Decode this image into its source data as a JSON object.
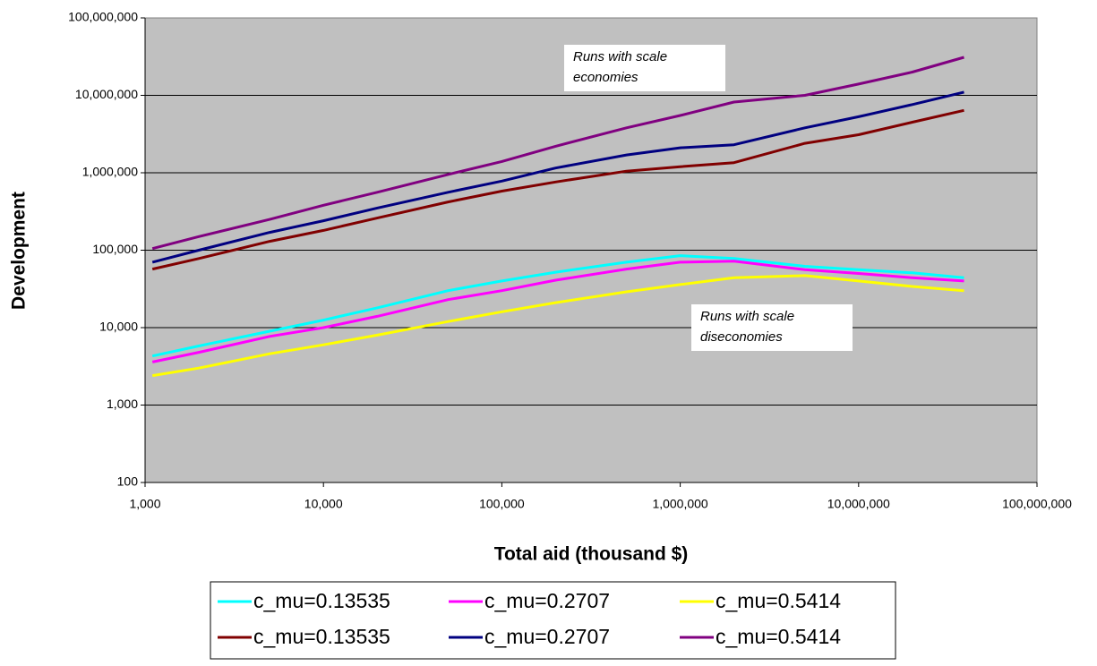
{
  "chart_data": {
    "type": "line",
    "x_label": "Total aid (thousand $)",
    "y_label": "Development",
    "x_scale": "log",
    "y_scale": "log",
    "grid": true,
    "plot_background": "#c0c0c0",
    "xlim": [
      1000,
      100000000
    ],
    "ylim": [
      100,
      100000000
    ],
    "xticks": [
      {
        "value": 1000,
        "label": "1,000"
      },
      {
        "value": 10000,
        "label": "10,000"
      },
      {
        "value": 100000,
        "label": "100,000"
      },
      {
        "value": 1000000,
        "label": "1,000,000"
      },
      {
        "value": 10000000,
        "label": "10,000,000"
      },
      {
        "value": 100000000,
        "label": "100,000,000"
      }
    ],
    "yticks": [
      100,
      {
        "value": 1000,
        "label": "1,000"
      },
      {
        "value": 10000,
        "label": "10,000"
      },
      {
        "value": 100000,
        "label": "100,000"
      },
      {
        "value": 1000000,
        "label": "1,000,000"
      },
      {
        "value": 10000000,
        "label": "10,000,000"
      },
      {
        "value": 100000000,
        "label": "100,000,000"
      }
    ],
    "x": [
      1100,
      2000,
      5000,
      10000,
      20000,
      50000,
      100000,
      200000,
      500000,
      1000000,
      2000000,
      5000000,
      10000000,
      20000000,
      39000000
    ],
    "series": [
      {
        "name": "c_mu=0.13535",
        "color": "#00ffff",
        "values": [
          4300,
          5800,
          9000,
          12500,
          18000,
          30000,
          40000,
          52000,
          70000,
          85000,
          78000,
          62000,
          56000,
          51000,
          44000
        ]
      },
      {
        "name": "c_mu=0.2707",
        "color": "#ff00ff",
        "values": [
          3600,
          4800,
          7700,
          10000,
          14000,
          23000,
          30000,
          41000,
          57000,
          70000,
          72000,
          56000,
          50000,
          44000,
          40000
        ]
      },
      {
        "name": "c_mu=0.5414",
        "color": "#ffff00",
        "values": [
          2400,
          3000,
          4600,
          6000,
          8000,
          12000,
          16000,
          21000,
          29000,
          36000,
          44000,
          47000,
          40000,
          34000,
          30000
        ]
      },
      {
        "name": "c_mu=0.13535",
        "color": "#800000",
        "values": [
          57000,
          78000,
          130000,
          180000,
          260000,
          420000,
          580000,
          760000,
          1050000,
          1200000,
          1350000,
          2400000,
          3100000,
          4500000,
          6400000
        ]
      },
      {
        "name": "c_mu=0.2707",
        "color": "#000080",
        "values": [
          70000,
          100000,
          170000,
          240000,
          350000,
          560000,
          780000,
          1150000,
          1700000,
          2100000,
          2300000,
          3800000,
          5300000,
          7600000,
          11000000
        ]
      },
      {
        "name": "c_mu=0.5414",
        "color": "#800080",
        "values": [
          105000,
          150000,
          250000,
          380000,
          560000,
          950000,
          1400000,
          2200000,
          3800000,
          5500000,
          8200000,
          10000000,
          14000000,
          20000000,
          31000000
        ]
      }
    ],
    "annotations": [
      {
        "lines": [
          "Runs with scale",
          "economies"
        ]
      },
      {
        "lines": [
          "Runs with scale",
          "diseconomies"
        ]
      }
    ]
  }
}
